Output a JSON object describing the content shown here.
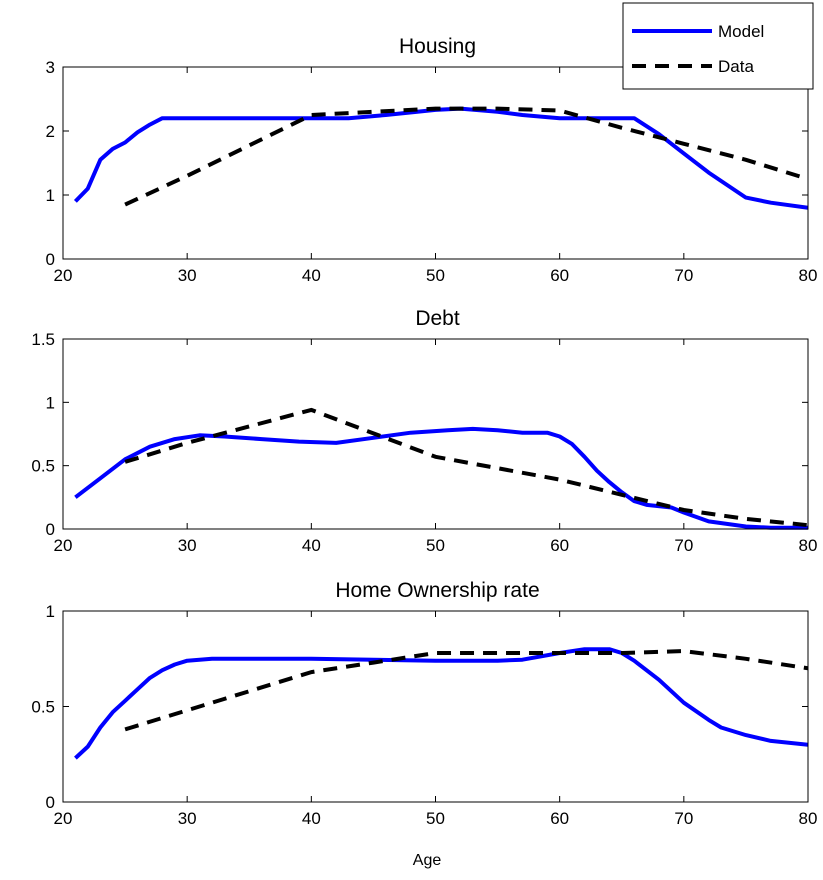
{
  "figure": {
    "xlabel": "Age",
    "legend": {
      "placement": "top-right",
      "entries": [
        {
          "name": "Model",
          "color": "#0000ff",
          "style": "solid"
        },
        {
          "name": "Data",
          "color": "#000000",
          "style": "dashed"
        }
      ]
    }
  },
  "chart_data": [
    {
      "type": "line",
      "title": "Housing",
      "xlim": [
        20,
        80
      ],
      "ylim": [
        0,
        3
      ],
      "xticks": [
        20,
        30,
        40,
        50,
        60,
        70,
        80
      ],
      "yticks": [
        0,
        1,
        2,
        3
      ],
      "ytick_labels": [
        "0",
        "1",
        "2",
        "3"
      ],
      "grid": false,
      "series": [
        {
          "name": "Model",
          "color": "#0000ff",
          "style": "solid",
          "x": [
            21,
            22,
            23,
            24,
            25,
            26,
            27,
            28,
            30,
            35,
            40,
            43,
            46,
            50,
            52,
            55,
            57,
            60,
            63,
            66,
            68,
            70,
            72,
            75,
            77,
            80
          ],
          "y": [
            0.9,
            1.1,
            1.55,
            1.72,
            1.82,
            1.98,
            2.1,
            2.2,
            2.2,
            2.2,
            2.2,
            2.2,
            2.25,
            2.33,
            2.35,
            2.3,
            2.25,
            2.2,
            2.2,
            2.2,
            1.95,
            1.65,
            1.35,
            0.96,
            0.88,
            0.8
          ]
        },
        {
          "name": "Data",
          "color": "#000000",
          "style": "dashed",
          "x": [
            25,
            30,
            40,
            45,
            50,
            55,
            60,
            65,
            70,
            75,
            80
          ],
          "y": [
            0.85,
            1.3,
            2.25,
            2.3,
            2.35,
            2.35,
            2.32,
            2.05,
            1.8,
            1.55,
            1.25
          ]
        }
      ]
    },
    {
      "type": "line",
      "title": "Debt",
      "xlim": [
        20,
        80
      ],
      "ylim": [
        0,
        1.5
      ],
      "xticks": [
        20,
        30,
        40,
        50,
        60,
        70,
        80
      ],
      "yticks": [
        0,
        0.5,
        1,
        1.5
      ],
      "ytick_labels": [
        "0",
        "0.5",
        "1",
        "1.5"
      ],
      "grid": false,
      "series": [
        {
          "name": "Model",
          "color": "#0000ff",
          "style": "solid",
          "x": [
            21,
            23,
            25,
            27,
            29,
            31,
            33,
            36,
            39,
            42,
            45,
            48,
            51,
            53,
            55,
            57,
            59,
            60,
            61,
            62,
            63,
            64,
            65,
            66,
            67,
            69,
            70,
            72,
            75,
            77,
            80
          ],
          "y": [
            0.25,
            0.4,
            0.55,
            0.65,
            0.71,
            0.74,
            0.73,
            0.71,
            0.69,
            0.68,
            0.72,
            0.76,
            0.78,
            0.79,
            0.78,
            0.76,
            0.76,
            0.73,
            0.67,
            0.57,
            0.46,
            0.37,
            0.29,
            0.22,
            0.19,
            0.17,
            0.13,
            0.06,
            0.02,
            0.01,
            0.01
          ]
        },
        {
          "name": "Data",
          "color": "#000000",
          "style": "dashed",
          "x": [
            25,
            30,
            40,
            50,
            60,
            65,
            70,
            75,
            80
          ],
          "y": [
            0.53,
            0.68,
            0.94,
            0.57,
            0.39,
            0.27,
            0.15,
            0.08,
            0.03
          ]
        }
      ]
    },
    {
      "type": "line",
      "title": "Home Ownership rate",
      "xlim": [
        20,
        80
      ],
      "ylim": [
        0,
        1
      ],
      "xticks": [
        20,
        30,
        40,
        50,
        60,
        70,
        80
      ],
      "yticks": [
        0,
        0.5,
        1
      ],
      "ytick_labels": [
        "0",
        "0.5",
        "1"
      ],
      "grid": false,
      "series": [
        {
          "name": "Model",
          "color": "#0000ff",
          "style": "solid",
          "x": [
            21,
            22,
            23,
            24,
            25,
            26,
            27,
            28,
            29,
            30,
            32,
            35,
            40,
            45,
            50,
            55,
            57,
            60,
            62,
            64,
            65,
            66,
            68,
            70,
            72,
            73,
            75,
            77,
            80
          ],
          "y": [
            0.23,
            0.29,
            0.39,
            0.47,
            0.53,
            0.59,
            0.65,
            0.69,
            0.72,
            0.74,
            0.75,
            0.75,
            0.75,
            0.745,
            0.74,
            0.74,
            0.745,
            0.78,
            0.8,
            0.8,
            0.78,
            0.74,
            0.64,
            0.52,
            0.43,
            0.39,
            0.35,
            0.32,
            0.3
          ]
        },
        {
          "name": "Data",
          "color": "#000000",
          "style": "dashed",
          "x": [
            25,
            30,
            35,
            40,
            45,
            50,
            55,
            60,
            65,
            70,
            75,
            80
          ],
          "y": [
            0.38,
            0.48,
            0.58,
            0.68,
            0.73,
            0.78,
            0.78,
            0.78,
            0.78,
            0.79,
            0.75,
            0.7
          ]
        }
      ]
    }
  ]
}
